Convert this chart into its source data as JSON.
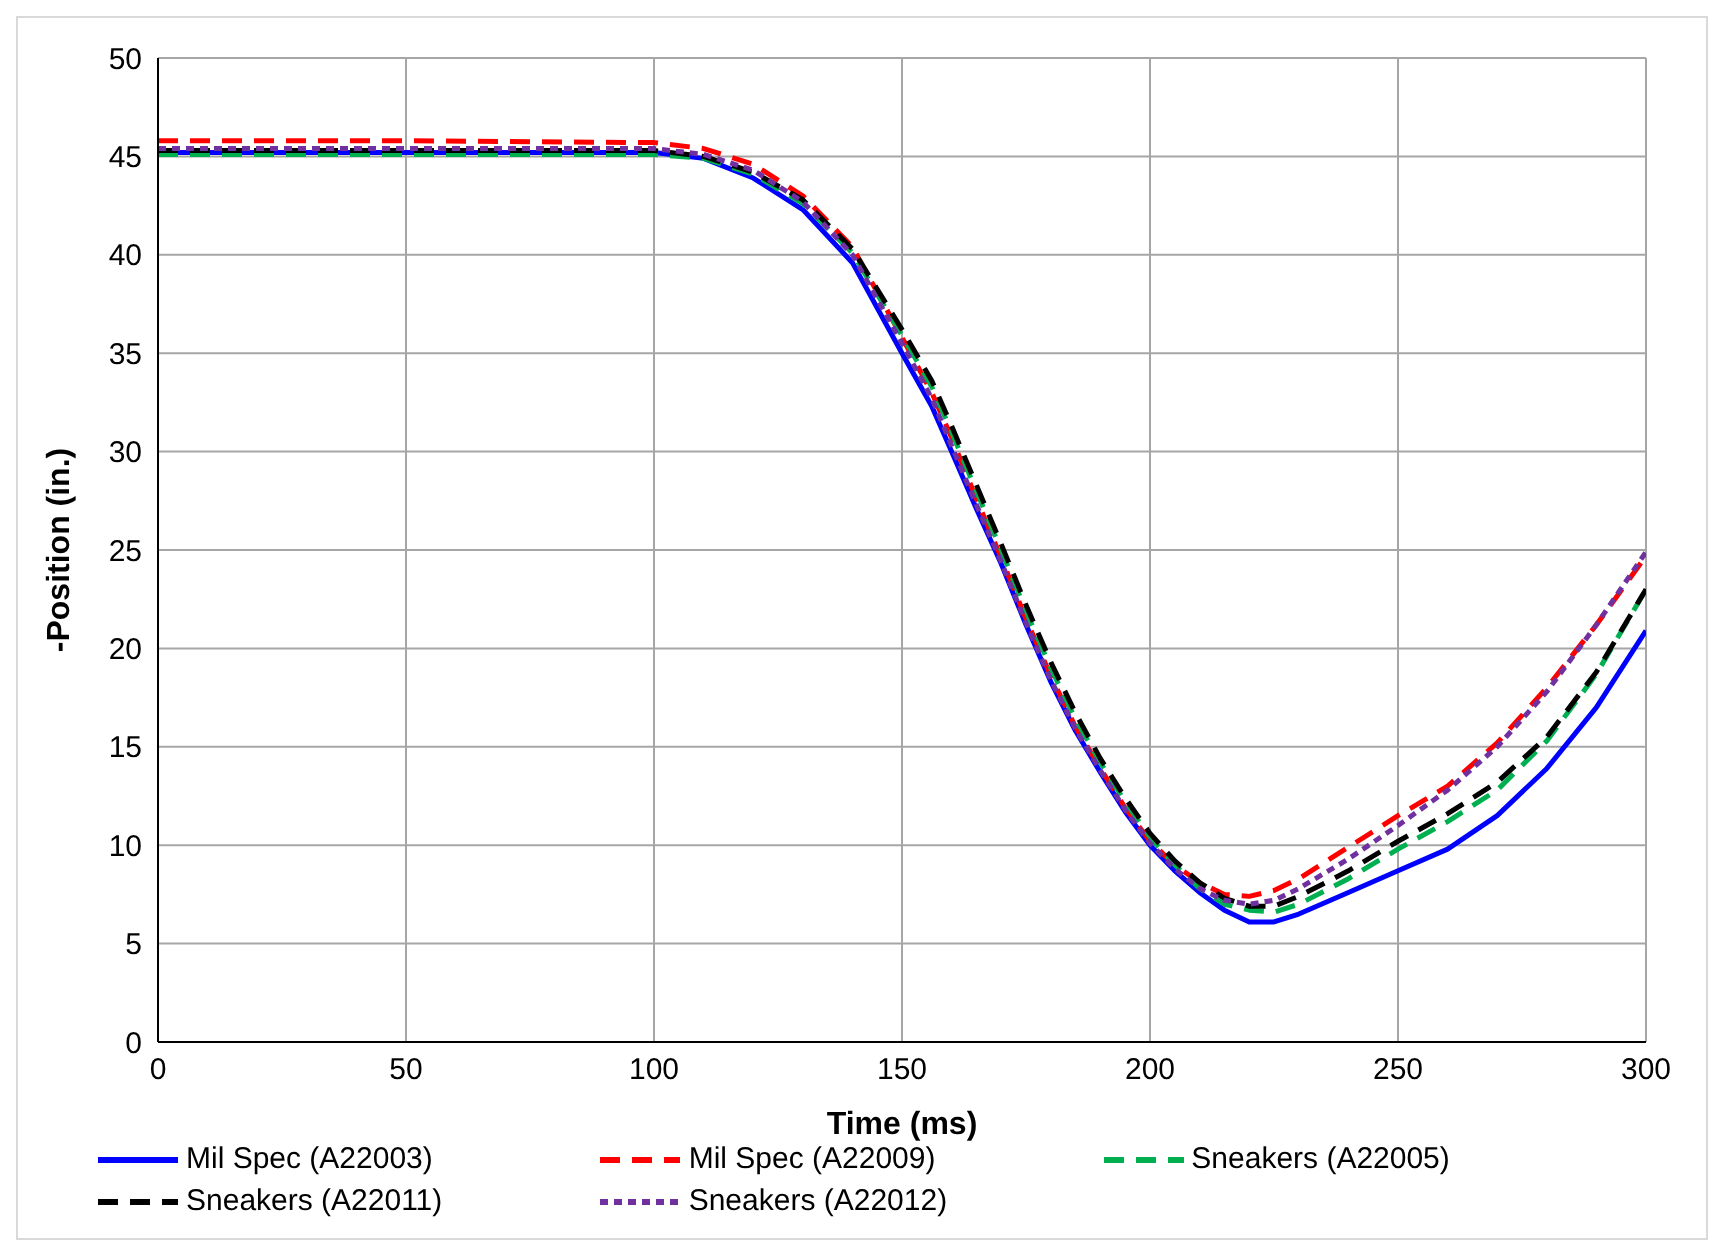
{
  "chart_data": {
    "type": "line",
    "xlabel": "Time (ms)",
    "ylabel": "-Position (in.)",
    "x": [
      0,
      50,
      100,
      110,
      120,
      130,
      140,
      150,
      156,
      160,
      165,
      170,
      175,
      180,
      185,
      190,
      195,
      200,
      205,
      210,
      215,
      220,
      225,
      230,
      240,
      250,
      260,
      270,
      280,
      290,
      300
    ],
    "xlim": [
      0,
      300
    ],
    "xticks": [
      0,
      50,
      100,
      150,
      200,
      250,
      300
    ],
    "ylim": [
      0,
      50
    ],
    "yticks": [
      0,
      5,
      10,
      15,
      20,
      25,
      30,
      35,
      40,
      45,
      50
    ],
    "grid": true,
    "legend": "bottom",
    "marker": "none",
    "series": [
      {
        "name": "Mil Spec (A22003)",
        "color": "#0000ff",
        "line_style": "solid",
        "values": [
          45.2,
          45.2,
          45.2,
          44.9,
          43.9,
          42.3,
          39.6,
          35,
          32.3,
          30,
          27.1,
          24.3,
          21.2,
          18.3,
          15.8,
          13.7,
          11.7,
          10,
          8.7,
          7.6,
          6.7,
          6.1,
          6.1,
          6.5,
          7.6,
          8.7,
          9.8,
          11.5,
          13.9,
          17,
          20.9
        ]
      },
      {
        "name": "Mil Spec (A22009)",
        "color": "#ff0000",
        "line_style": "dashed",
        "values": [
          45.8,
          45.8,
          45.7,
          45.4,
          44.6,
          43,
          40.4,
          35.8,
          33,
          30.7,
          27.6,
          24.6,
          21.5,
          18.6,
          16,
          13.9,
          11.9,
          10.2,
          9,
          8.1,
          7.5,
          7.4,
          7.7,
          8.3,
          9.9,
          11.5,
          13,
          15.2,
          18,
          21.2,
          24.7
        ]
      },
      {
        "name": "Sneakers (A22005)",
        "color": "#00b050",
        "line_style": "dashed",
        "values": [
          45.1,
          45.1,
          45.1,
          44.9,
          44.1,
          42.6,
          40.1,
          35.9,
          33.3,
          31,
          28,
          25,
          21.9,
          19,
          16.4,
          14.2,
          12.2,
          10.4,
          9,
          7.8,
          7,
          6.7,
          6.6,
          7,
          8.3,
          9.8,
          11.2,
          12.8,
          15.3,
          18.7,
          23
        ]
      },
      {
        "name": "Sneakers (A22011)",
        "color": "#000000",
        "line_style": "dashed",
        "values": [
          45.3,
          45.3,
          45.3,
          45,
          44.2,
          42.8,
          40.3,
          36.2,
          33.6,
          31.3,
          28.3,
          25.3,
          22.2,
          19.3,
          16.7,
          14.4,
          12.4,
          10.6,
          9.2,
          8.1,
          7.3,
          6.9,
          6.9,
          7.4,
          8.7,
          10.2,
          11.6,
          13.2,
          15.5,
          18.8,
          23
        ]
      },
      {
        "name": "Sneakers (A22012)",
        "color": "#7030a0",
        "line_style": "dotted",
        "values": [
          45.4,
          45.4,
          45.4,
          45.1,
          44.3,
          42.7,
          40,
          35.5,
          32.7,
          30.3,
          27.3,
          24.4,
          21.3,
          18.4,
          15.9,
          13.8,
          11.8,
          10.1,
          8.8,
          7.8,
          7.2,
          7,
          7.2,
          7.8,
          9.3,
          11,
          12.8,
          15,
          17.8,
          21.2,
          24.9
        ]
      }
    ]
  }
}
